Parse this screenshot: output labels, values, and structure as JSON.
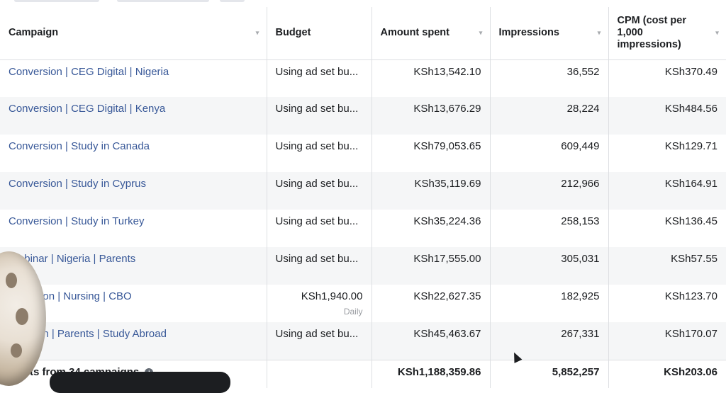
{
  "columns": {
    "campaign": "Campaign",
    "budget": "Budget",
    "amount_spent": "Amount spent",
    "impressions": "Impressions",
    "cpm": "CPM (cost per 1,000 impressions)"
  },
  "rows": [
    {
      "campaign": "Conversion | CEG Digital | Nigeria",
      "budget": "Using ad set bu...",
      "budget_sub": "",
      "amount_spent": "KSh13,542.10",
      "impressions": "36,552",
      "cpm": "KSh370.49"
    },
    {
      "campaign": "Conversion | CEG Digital | Kenya",
      "budget": "Using ad set bu...",
      "budget_sub": "",
      "amount_spent": "KSh13,676.29",
      "impressions": "28,224",
      "cpm": "KSh484.56"
    },
    {
      "campaign": "Conversion | Study in Canada",
      "budget": "Using ad set bu...",
      "budget_sub": "",
      "amount_spent": "KSh79,053.65",
      "impressions": "609,449",
      "cpm": "KSh129.71"
    },
    {
      "campaign": "Conversion | Study in Cyprus",
      "budget": "Using ad set bu...",
      "budget_sub": "",
      "amount_spent": "KSh35,119.69",
      "impressions": "212,966",
      "cpm": "KSh164.91"
    },
    {
      "campaign": "Conversion | Study in Turkey",
      "budget": "Using ad set bu...",
      "budget_sub": "",
      "amount_spent": "KSh35,224.36",
      "impressions": "258,153",
      "cpm": "KSh136.45"
    },
    {
      "campaign": "Webinar | Nigeria | Parents",
      "budget": "Using ad set bu...",
      "budget_sub": "",
      "amount_spent": "KSh17,555.00",
      "impressions": "305,031",
      "cpm": "KSh57.55"
    },
    {
      "campaign": "onversion | Nursing | CBO",
      "budget": "KSh1,940.00",
      "budget_sub": "Daily",
      "amount_spent": "KSh22,627.35",
      "impressions": "182,925",
      "cpm": "KSh123.70"
    },
    {
      "campaign": "nversion | Parents | Study Abroad",
      "budget": "Using ad set bu...",
      "budget_sub": "",
      "amount_spent": "KSh45,463.67",
      "impressions": "267,331",
      "cpm": "KSh170.07"
    }
  ],
  "totals": {
    "label": "esults from 34 campaigns",
    "amount_spent": "KSh1,188,359.86",
    "impressions": "5,852,257",
    "cpm": "KSh203.06"
  },
  "colors": {
    "link": "#385898",
    "border": "#dddfe2",
    "stripe": "#f5f6f7"
  }
}
